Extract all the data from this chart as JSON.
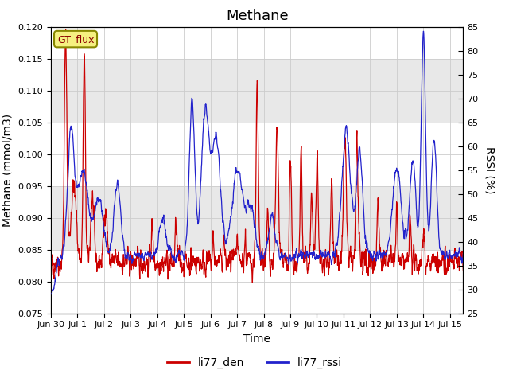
{
  "title": "Methane",
  "xlabel": "Time",
  "ylabel_left": "Methane (mmol/m3)",
  "ylabel_right": "RSSI (%)",
  "ylim_left": [
    0.075,
    0.12
  ],
  "ylim_right": [
    25,
    85
  ],
  "yticks_left": [
    0.075,
    0.08,
    0.085,
    0.09,
    0.095,
    0.1,
    0.105,
    0.11,
    0.115,
    0.12
  ],
  "yticks_right": [
    25,
    30,
    35,
    40,
    45,
    50,
    55,
    60,
    65,
    70,
    75,
    80,
    85
  ],
  "xtick_labels": [
    "Jun 30",
    "Jul 1",
    "Jul 2",
    "Jul 3",
    "Jul 4",
    "Jul 5",
    "Jul 6",
    "Jul 7",
    "Jul 8",
    "Jul 9",
    "Jul 10",
    "Jul 11",
    "Jul 12",
    "Jul 13",
    "Jul 14",
    "Jul 15"
  ],
  "color_red": "#cc0000",
  "color_blue": "#2222cc",
  "legend_label_red": "li77_den",
  "legend_label_blue": "li77_rssi",
  "gt_flux_label": "GT_flux",
  "band_color": "#e8e8e8",
  "background_color": "#ffffff",
  "grid_color": "#cccccc",
  "title_fontsize": 13,
  "axis_fontsize": 10,
  "tick_fontsize": 8,
  "legend_fontsize": 10
}
